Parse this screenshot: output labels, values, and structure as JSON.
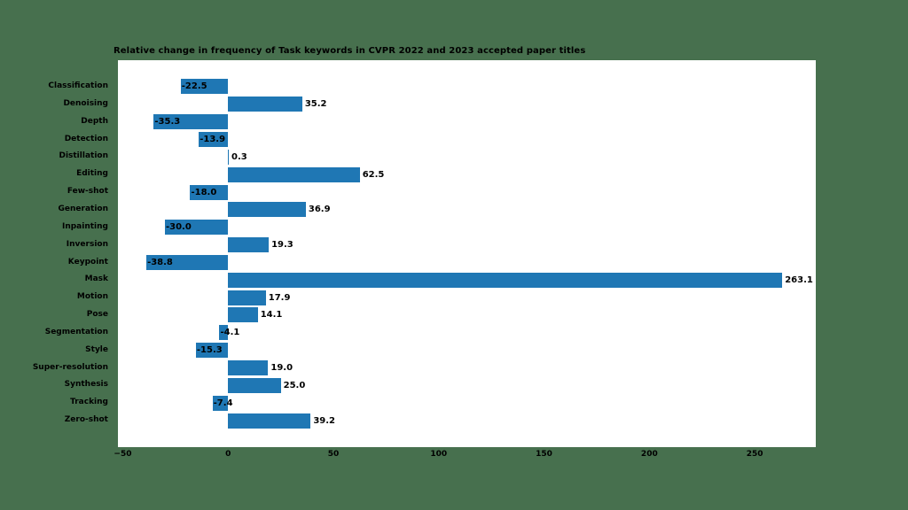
{
  "figure": {
    "background_color": "#47704E",
    "panel_color": "#ffffff",
    "text_color": "#000000"
  },
  "chart_data": {
    "type": "bar",
    "orientation": "horizontal",
    "title": "Relative change in frequency of Task keywords in CVPR 2022 and 2023 accepted paper titles",
    "categories": [
      "Classification",
      "Denoising",
      "Depth",
      "Detection",
      "Distillation",
      "Editing",
      "Few-shot",
      "Generation",
      "Inpainting",
      "Inversion",
      "Keypoint",
      "Mask",
      "Motion",
      "Pose",
      "Segmentation",
      "Style",
      "Super-resolution",
      "Synthesis",
      "Tracking",
      "Zero-shot"
    ],
    "values": [
      -22.5,
      35.2,
      -35.3,
      -13.9,
      0.3,
      62.5,
      -18.0,
      36.9,
      -30.0,
      19.3,
      -38.8,
      263.1,
      17.9,
      14.1,
      -4.1,
      -15.3,
      19.0,
      25.0,
      -7.4,
      39.2
    ],
    "bar_color": "#1f77b4",
    "xlabel": "",
    "ylabel": "",
    "xlim": [
      -52.3,
      279.0
    ],
    "x_ticks": [
      -50,
      0,
      50,
      100,
      150,
      200,
      250
    ],
    "grid": false,
    "legend": "none",
    "value_label_decimals": 1
  }
}
